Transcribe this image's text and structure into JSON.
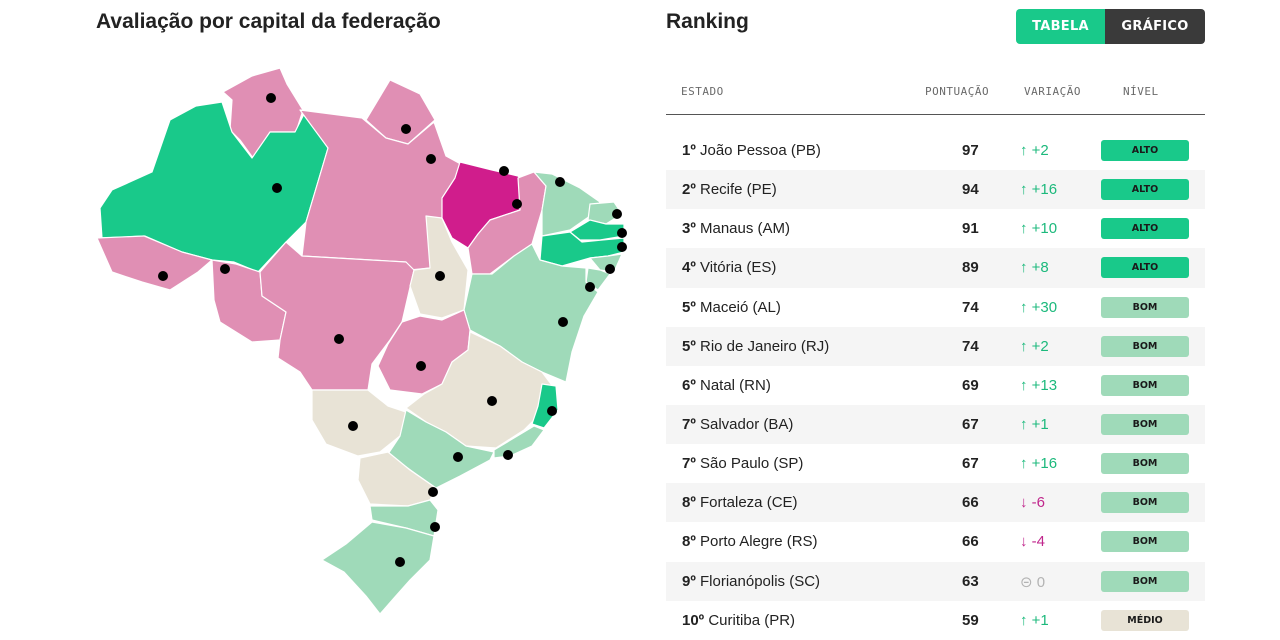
{
  "map_title": "Avaliação por capital da federação",
  "ranking_title": "Ranking",
  "toggle": {
    "table_label": "TABELA",
    "chart_label": "GRÁFICO",
    "active": "TABELA"
  },
  "table": {
    "headers": {
      "state": "ESTADO",
      "score": "PONTUAÇÃO",
      "variation": "VARIAÇÃO",
      "level": "NÍVEL"
    },
    "rows": [
      {
        "rank": "1º",
        "name": "João Pessoa (PB)",
        "score": "97",
        "var_icon": "↑",
        "var_value": "+2",
        "trend": "up",
        "level": "ALTO",
        "level_key": "alto"
      },
      {
        "rank": "2º",
        "name": "Recife (PE)",
        "score": "94",
        "var_icon": "↑",
        "var_value": "+16",
        "trend": "up",
        "level": "ALTO",
        "level_key": "alto"
      },
      {
        "rank": "3º",
        "name": "Manaus (AM)",
        "score": "91",
        "var_icon": "↑",
        "var_value": "+10",
        "trend": "up",
        "level": "ALTO",
        "level_key": "alto"
      },
      {
        "rank": "4º",
        "name": "Vitória (ES)",
        "score": "89",
        "var_icon": "↑",
        "var_value": "+8",
        "trend": "up",
        "level": "ALTO",
        "level_key": "alto"
      },
      {
        "rank": "5º",
        "name": "Maceió (AL)",
        "score": "74",
        "var_icon": "↑",
        "var_value": "+30",
        "trend": "up",
        "level": "BOM",
        "level_key": "bom"
      },
      {
        "rank": "5º",
        "name": "Rio de Janeiro (RJ)",
        "score": "74",
        "var_icon": "↑",
        "var_value": "+2",
        "trend": "up",
        "level": "BOM",
        "level_key": "bom"
      },
      {
        "rank": "6º",
        "name": "Natal (RN)",
        "score": "69",
        "var_icon": "↑",
        "var_value": "+13",
        "trend": "up",
        "level": "BOM",
        "level_key": "bom"
      },
      {
        "rank": "7º",
        "name": "Salvador (BA)",
        "score": "67",
        "var_icon": "↑",
        "var_value": "+1",
        "trend": "up",
        "level": "BOM",
        "level_key": "bom"
      },
      {
        "rank": "7º",
        "name": "São Paulo (SP)",
        "score": "67",
        "var_icon": "↑",
        "var_value": "+16",
        "trend": "up",
        "level": "BOM",
        "level_key": "bom"
      },
      {
        "rank": "8º",
        "name": "Fortaleza (CE)",
        "score": "66",
        "var_icon": "↓",
        "var_value": "-6",
        "trend": "down",
        "level": "BOM",
        "level_key": "bom"
      },
      {
        "rank": "8º",
        "name": "Porto Alegre (RS)",
        "score": "66",
        "var_icon": "↓",
        "var_value": "-4",
        "trend": "down",
        "level": "BOM",
        "level_key": "bom"
      },
      {
        "rank": "9º",
        "name": "Florianópolis (SC)",
        "score": "63",
        "var_icon": "⊝",
        "var_value": "0",
        "trend": "zero",
        "level": "BOM",
        "level_key": "bom"
      },
      {
        "rank": "10º",
        "name": "Curitiba (PR)",
        "score": "59",
        "var_icon": "↑",
        "var_value": "+1",
        "trend": "up",
        "level": "MÉDIO",
        "level_key": "medio"
      }
    ]
  },
  "colors": {
    "alto": "#19c98a",
    "bom": "#9fdab9",
    "medio": "#e8e3d6",
    "baixo": "#e08fb4",
    "muito_baixo": "#d01d8c",
    "up": "#1cb97c",
    "down": "#c0268c",
    "toggle_active": "#19c98a",
    "toggle_inactive": "#3a3a3a"
  },
  "map_states": [
    {
      "code": "RR",
      "level": "baixo"
    },
    {
      "code": "AP",
      "level": "baixo"
    },
    {
      "code": "AM",
      "level": "alto"
    },
    {
      "code": "PA",
      "level": "baixo"
    },
    {
      "code": "AC",
      "level": "baixo"
    },
    {
      "code": "RO",
      "level": "baixo"
    },
    {
      "code": "MT",
      "level": "baixo"
    },
    {
      "code": "TO",
      "level": "medio"
    },
    {
      "code": "MA",
      "level": "muito_baixo"
    },
    {
      "code": "PI",
      "level": "baixo"
    },
    {
      "code": "CE",
      "level": "bom"
    },
    {
      "code": "RN",
      "level": "bom"
    },
    {
      "code": "PB",
      "level": "alto"
    },
    {
      "code": "PE",
      "level": "alto"
    },
    {
      "code": "AL",
      "level": "bom"
    },
    {
      "code": "SE",
      "level": "bom"
    },
    {
      "code": "BA",
      "level": "bom"
    },
    {
      "code": "GO",
      "level": "baixo"
    },
    {
      "code": "MS",
      "level": "medio"
    },
    {
      "code": "MG",
      "level": "medio"
    },
    {
      "code": "ES",
      "level": "alto"
    },
    {
      "code": "RJ",
      "level": "bom"
    },
    {
      "code": "SP",
      "level": "bom"
    },
    {
      "code": "PR",
      "level": "medio"
    },
    {
      "code": "SC",
      "level": "bom"
    },
    {
      "code": "RS",
      "level": "bom"
    }
  ]
}
